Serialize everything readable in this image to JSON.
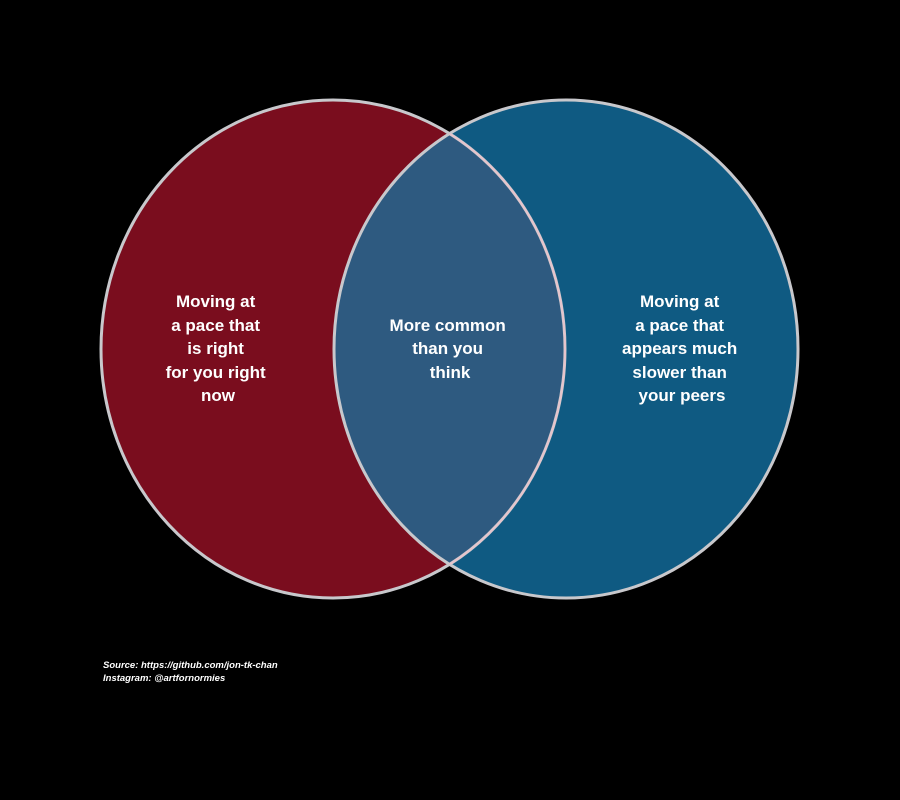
{
  "diagram": {
    "type": "venn",
    "colors": {
      "background": "#000000",
      "left_fill": "#7a0d1e",
      "right_fill": "#0f5a82",
      "outline": "#c8c8cc",
      "text": "#ffffff"
    },
    "left_label": [
      "Moving at",
      "a pace that",
      "is right",
      "for you right",
      "now"
    ],
    "center_label": [
      "More common",
      "than you",
      "think"
    ],
    "right_label": [
      "Moving at",
      "a pace that",
      "appears much",
      "slower than",
      "your peers"
    ]
  },
  "credits": {
    "source": "Source: https://github.com/jon-tk-chan",
    "instagram": "Instagram: @artfornormies"
  }
}
